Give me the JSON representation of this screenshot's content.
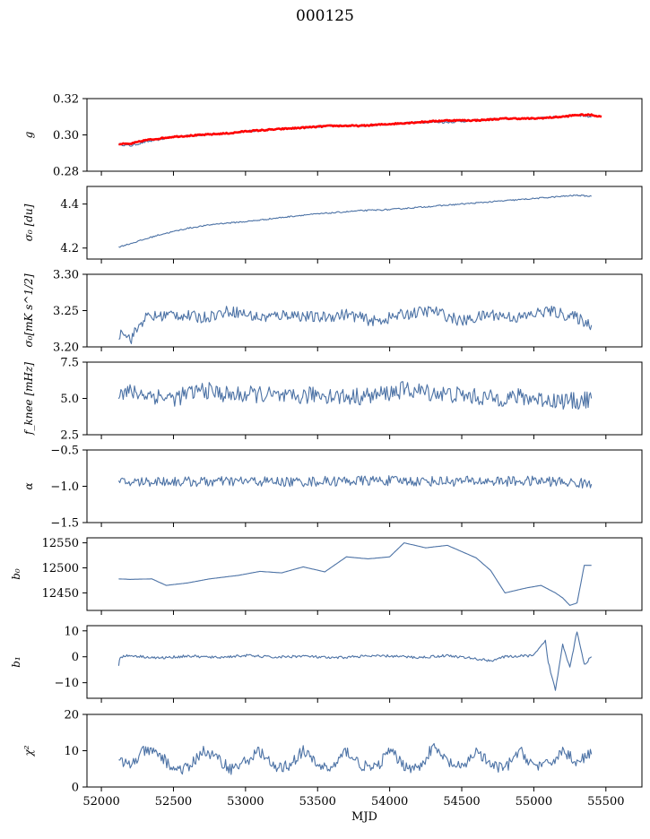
{
  "figure": {
    "title": "000125",
    "xlabel": "MJD"
  },
  "colors": {
    "series": "#4c72a5",
    "fit": "#ff0000",
    "axis": "#000000"
  },
  "chart_data": [
    {
      "type": "line",
      "ylabel": "g",
      "xlim": [
        51900,
        55750
      ],
      "ylim": [
        0.28,
        0.32
      ],
      "yticks": [
        0.28,
        0.3,
        0.32
      ],
      "ytick_labels": [
        "0.28",
        "0.30",
        "0.32"
      ],
      "xtick_labels_shown": false,
      "series": [
        {
          "color": "#4c72a5",
          "x": [
            52120,
            52200,
            52300,
            52500,
            52700,
            52900,
            53000,
            53200,
            53400,
            53600,
            53800,
            54000,
            54200,
            54400,
            54600,
            54800,
            55000,
            55200,
            55300,
            55400
          ],
          "y": [
            0.295,
            0.294,
            0.296,
            0.299,
            0.3,
            0.301,
            0.302,
            0.303,
            0.304,
            0.305,
            0.305,
            0.306,
            0.307,
            0.307,
            0.308,
            0.309,
            0.309,
            0.31,
            0.311,
            0.31
          ]
        },
        {
          "color": "#ff0000",
          "x": [
            52120,
            52200,
            52300,
            52500,
            52700,
            52900,
            53000,
            53200,
            53400,
            53600,
            53800,
            54000,
            54200,
            54400,
            54600,
            54800,
            55000,
            55200,
            55300,
            55400,
            55470
          ],
          "y": [
            0.295,
            0.295,
            0.297,
            0.299,
            0.3,
            0.301,
            0.302,
            0.303,
            0.304,
            0.305,
            0.305,
            0.306,
            0.307,
            0.308,
            0.308,
            0.309,
            0.309,
            0.31,
            0.311,
            0.311,
            0.31
          ]
        }
      ]
    },
    {
      "type": "line",
      "ylabel": "σ₀ [du]",
      "xlim": [
        51900,
        55750
      ],
      "ylim": [
        4.15,
        4.48
      ],
      "yticks": [
        4.2,
        4.4
      ],
      "ytick_labels": [
        "4.2",
        "4.4"
      ],
      "xtick_labels_shown": false,
      "series": [
        {
          "color": "#4c72a5",
          "x": [
            52120,
            52200,
            52400,
            52600,
            52800,
            53000,
            53200,
            53400,
            53600,
            53800,
            54000,
            54200,
            54400,
            54600,
            54800,
            55000,
            55200,
            55300,
            55400
          ],
          "y": [
            4.205,
            4.22,
            4.26,
            4.29,
            4.31,
            4.32,
            4.335,
            4.35,
            4.36,
            4.37,
            4.375,
            4.385,
            4.395,
            4.405,
            4.415,
            4.425,
            4.435,
            4.44,
            4.435
          ]
        }
      ]
    },
    {
      "type": "line",
      "ylabel": "σ₀[mK s^1/2]",
      "xlim": [
        51900,
        55750
      ],
      "ylim": [
        3.2,
        3.3
      ],
      "yticks": [
        3.2,
        3.25,
        3.3
      ],
      "ytick_labels": [
        "3.20",
        "3.25",
        "3.30"
      ],
      "xtick_labels_shown": false,
      "series": [
        {
          "color": "#4c72a5",
          "x": [
            52120,
            52150,
            52200,
            52300,
            52500,
            52700,
            52900,
            53100,
            53300,
            53500,
            53700,
            53900,
            54100,
            54300,
            54500,
            54700,
            54900,
            55100,
            55200,
            55300,
            55400
          ],
          "y": [
            3.215,
            3.225,
            3.21,
            3.24,
            3.245,
            3.24,
            3.25,
            3.24,
            3.245,
            3.24,
            3.245,
            3.235,
            3.245,
            3.25,
            3.235,
            3.245,
            3.24,
            3.25,
            3.245,
            3.24,
            3.23
          ]
        }
      ]
    },
    {
      "type": "line",
      "ylabel": "f_knee [mHz]",
      "xlim": [
        51900,
        55750
      ],
      "ylim": [
        2.5,
        7.5
      ],
      "yticks": [
        2.5,
        5.0,
        7.5
      ],
      "ytick_labels": [
        "2.5",
        "5.0",
        "7.5"
      ],
      "xtick_labels_shown": false,
      "series": [
        {
          "color": "#4c72a5",
          "x": [
            52120,
            52300,
            52500,
            52700,
            52900,
            53100,
            53300,
            53500,
            53700,
            53900,
            54100,
            54300,
            54500,
            54700,
            54900,
            55100,
            55300,
            55400
          ],
          "y": [
            5.5,
            5.3,
            5.0,
            5.6,
            5.2,
            5.3,
            5.0,
            5.3,
            5.1,
            5.2,
            5.6,
            5.4,
            5.2,
            5.0,
            5.1,
            4.9,
            4.8,
            5.0
          ]
        }
      ]
    },
    {
      "type": "line",
      "ylabel": "α",
      "xlim": [
        51900,
        55750
      ],
      "ylim": [
        -1.5,
        -0.5
      ],
      "yticks": [
        -1.5,
        -1.0,
        -0.5
      ],
      "ytick_labels": [
        "−1.5",
        "−1.0",
        "−0.5"
      ],
      "xtick_labels_shown": false,
      "series": [
        {
          "color": "#4c72a5",
          "x": [
            52120,
            52400,
            52700,
            53000,
            53300,
            53600,
            53900,
            54200,
            54500,
            54800,
            55100,
            55400
          ],
          "y": [
            -0.95,
            -0.93,
            -0.94,
            -0.93,
            -0.94,
            -0.93,
            -0.92,
            -0.93,
            -0.93,
            -0.93,
            -0.93,
            -0.97
          ]
        }
      ]
    },
    {
      "type": "line",
      "ylabel": "b₀",
      "xlim": [
        51900,
        55750
      ],
      "ylim": [
        12415,
        12560
      ],
      "yticks": [
        12450,
        12500,
        12550
      ],
      "ytick_labels": [
        "12450",
        "12500",
        "12550"
      ],
      "xtick_labels_shown": false,
      "series": [
        {
          "color": "#4c72a5",
          "x": [
            52120,
            52200,
            52350,
            52450,
            52600,
            52750,
            52950,
            53100,
            53250,
            53400,
            53550,
            53700,
            53850,
            54000,
            54100,
            54250,
            54400,
            54600,
            54700,
            54800,
            54950,
            55050,
            55150,
            55200,
            55250,
            55300,
            55350,
            55400
          ],
          "y": [
            12478,
            12477,
            12478,
            12465,
            12470,
            12478,
            12485,
            12493,
            12490,
            12502,
            12492,
            12522,
            12518,
            12522,
            12550,
            12540,
            12545,
            12520,
            12495,
            12450,
            12460,
            12465,
            12450,
            12440,
            12425,
            12430,
            12505,
            12505
          ]
        }
      ]
    },
    {
      "type": "line",
      "ylabel": "b₁",
      "xlim": [
        51900,
        55750
      ],
      "ylim": [
        -16,
        12
      ],
      "yticks": [
        -10,
        0,
        10
      ],
      "ytick_labels": [
        "−10",
        "0",
        "10"
      ],
      "xtick_labels_shown": false,
      "series": [
        {
          "color": "#4c72a5",
          "x": [
            52120,
            52130,
            52200,
            52400,
            52600,
            52800,
            53000,
            53200,
            53400,
            53600,
            53800,
            54000,
            54200,
            54400,
            54600,
            54700,
            54800,
            55000,
            55080,
            55100,
            55150,
            55200,
            55250,
            55300,
            55350,
            55400
          ],
          "y": [
            -3,
            0,
            0.5,
            -0.5,
            0.3,
            -0.3,
            0.5,
            -0.2,
            0.3,
            -0.5,
            0.2,
            0.3,
            -0.3,
            0.5,
            -0.8,
            -1.5,
            0,
            0.5,
            6,
            -2,
            -13,
            5,
            -4,
            10,
            -3,
            0
          ]
        }
      ]
    },
    {
      "type": "line",
      "ylabel": "χ²",
      "xlabel": "MJD",
      "xlim": [
        51900,
        55750
      ],
      "ylim": [
        0,
        20
      ],
      "yticks": [
        0,
        10,
        20
      ],
      "ytick_labels": [
        "0",
        "10",
        "20"
      ],
      "xticks": [
        52000,
        52500,
        53000,
        53500,
        54000,
        54500,
        55000,
        55500
      ],
      "xtick_labels": [
        "52000",
        "52500",
        "53000",
        "53500",
        "54000",
        "54500",
        "55000",
        "55500"
      ],
      "xtick_labels_shown": true,
      "series": [
        {
          "color": "#4c72a5",
          "x": [
            52120,
            52200,
            52300,
            52400,
            52500,
            52600,
            52700,
            52800,
            52900,
            53000,
            53100,
            53200,
            53300,
            53400,
            53500,
            53600,
            53700,
            53800,
            53900,
            54000,
            54100,
            54200,
            54300,
            54400,
            54500,
            54600,
            54700,
            54800,
            54900,
            55000,
            55100,
            55200,
            55300,
            55400
          ],
          "y": [
            7,
            6,
            10,
            9,
            5,
            5,
            10,
            8,
            5,
            7,
            10,
            5,
            6,
            10,
            6,
            5,
            10,
            6,
            5,
            10,
            6,
            5,
            11,
            7,
            5,
            10,
            6,
            5,
            10,
            6,
            6,
            10,
            7,
            9
          ]
        }
      ]
    }
  ]
}
